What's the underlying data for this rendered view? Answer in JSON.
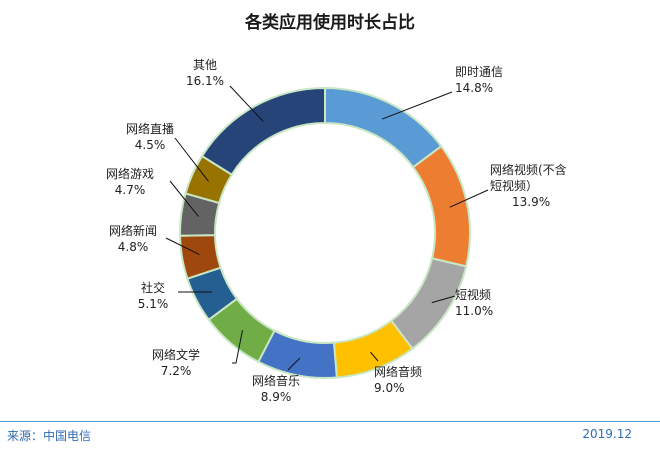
{
  "chart_data": {
    "type": "pie",
    "title": "各类应用使用时长占比",
    "slices": [
      {
        "label": "即时通信",
        "value": 14.8,
        "display": "14.8%",
        "color": "#5b9bd5"
      },
      {
        "label": "网络视频(不含短视频）",
        "value": 13.9,
        "display": "13.9%",
        "color": "#ed7d31"
      },
      {
        "label": "短视频",
        "value": 11.0,
        "display": "11.0%",
        "color": "#a5a5a5"
      },
      {
        "label": "网络音频",
        "value": 9.0,
        "display": "9.0%",
        "color": "#ffc000"
      },
      {
        "label": "网络音乐",
        "value": 8.9,
        "display": "8.9%",
        "color": "#4472c4"
      },
      {
        "label": "网络文学",
        "value": 7.2,
        "display": "7.2%",
        "color": "#70ad47"
      },
      {
        "label": "社交",
        "value": 5.1,
        "display": "5.1%",
        "color": "#255e91"
      },
      {
        "label": "网络新闻",
        "value": 4.8,
        "display": "4.8%",
        "color": "#9e480e"
      },
      {
        "label": "网络游戏",
        "value": 4.7,
        "display": "4.7%",
        "color": "#636363"
      },
      {
        "label": "网络直播",
        "value": 4.5,
        "display": "4.5%",
        "color": "#997300"
      },
      {
        "label": "其他",
        "value": 16.1,
        "display": "16.1%",
        "color": "#264478"
      }
    ]
  },
  "footer": {
    "source": "来源：中国电信",
    "date": "2019.12"
  }
}
